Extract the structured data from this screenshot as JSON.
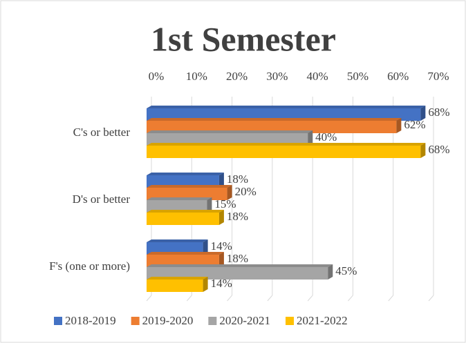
{
  "chart_data": {
    "type": "bar",
    "orientation": "horizontal",
    "title": "1st Semester",
    "categories": [
      "C's or better",
      "D's or better",
      "F's (one or more)"
    ],
    "series": [
      {
        "name": "2018-2019",
        "color": "#4472c4",
        "values": [
          68,
          18,
          14
        ],
        "value_labels": [
          "68%",
          "18%",
          "14%"
        ]
      },
      {
        "name": "2019-2020",
        "color": "#ed7d31",
        "values": [
          62,
          20,
          18
        ],
        "value_labels": [
          "62%",
          "20%",
          "18%"
        ]
      },
      {
        "name": "2020-2021",
        "color": "#a5a5a5",
        "values": [
          40,
          15,
          45
        ],
        "value_labels": [
          "40%",
          "15%",
          "45%"
        ]
      },
      {
        "name": "2021-2022",
        "color": "#ffc000",
        "values": [
          68,
          18,
          14
        ],
        "value_labels": [
          "68%",
          "18%",
          "14%"
        ]
      }
    ],
    "xlim": [
      0,
      70
    ],
    "xticks": [
      {
        "value": 0,
        "label": "0%"
      },
      {
        "value": 10,
        "label": "10%"
      },
      {
        "value": 20,
        "label": "20%"
      },
      {
        "value": 30,
        "label": "30%"
      },
      {
        "value": 40,
        "label": "40%"
      },
      {
        "value": 50,
        "label": "50%"
      },
      {
        "value": 60,
        "label": "60%"
      },
      {
        "value": 70,
        "label": "70%"
      }
    ],
    "grid": true,
    "legend": "bottom"
  }
}
